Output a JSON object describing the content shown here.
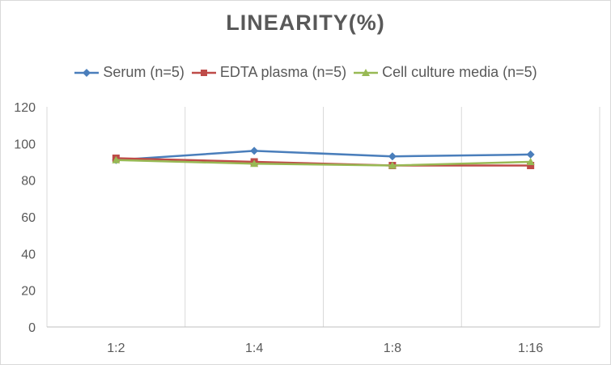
{
  "chart_data": {
    "type": "line",
    "title": "LINEARITY(%)",
    "categories": [
      "1:2",
      "1:4",
      "1:8",
      "1:16"
    ],
    "series": [
      {
        "name": "Serum (n=5)",
        "values": [
          91,
          96,
          93,
          94
        ],
        "color": "#4a7ebb",
        "marker": "diamond"
      },
      {
        "name": "EDTA plasma (n=5)",
        "values": [
          92,
          90,
          88,
          88
        ],
        "color": "#be4b48",
        "marker": "square"
      },
      {
        "name": "Cell culture media (n=5)",
        "values": [
          91,
          89,
          88,
          90
        ],
        "color": "#98b954",
        "marker": "triangle"
      }
    ],
    "ylim": [
      0,
      120
    ],
    "yticks": [
      0,
      20,
      40,
      60,
      80,
      100,
      120
    ],
    "legend_position": "top",
    "grid": "vertical"
  }
}
